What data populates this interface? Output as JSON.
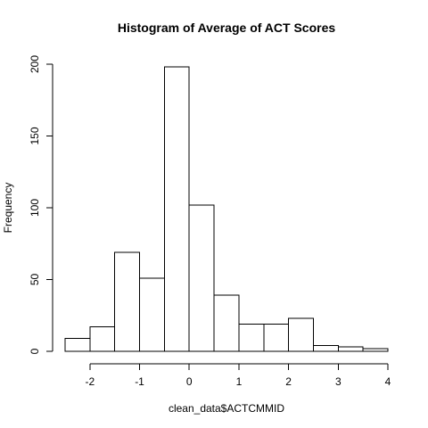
{
  "chart_data": {
    "type": "bar",
    "title": "Histogram of Average of ACT Scores",
    "xlabel": "clean_data$ACTCMMID",
    "ylabel": "Frequency",
    "bin_width": 0.5,
    "bins": [
      {
        "start": -2.5,
        "end": -2.0,
        "count": 9
      },
      {
        "start": -2.0,
        "end": -1.5,
        "count": 17
      },
      {
        "start": -1.5,
        "end": -1.0,
        "count": 69
      },
      {
        "start": -1.0,
        "end": -0.5,
        "count": 51
      },
      {
        "start": -0.5,
        "end": 0.0,
        "count": 198
      },
      {
        "start": 0.0,
        "end": 0.5,
        "count": 102
      },
      {
        "start": 0.5,
        "end": 1.0,
        "count": 39
      },
      {
        "start": 1.0,
        "end": 1.5,
        "count": 19
      },
      {
        "start": 1.5,
        "end": 2.0,
        "count": 19
      },
      {
        "start": 2.0,
        "end": 2.5,
        "count": 23
      },
      {
        "start": 2.5,
        "end": 3.0,
        "count": 4
      },
      {
        "start": 3.0,
        "end": 3.5,
        "count": 3
      },
      {
        "start": 3.5,
        "end": 4.0,
        "count": 2
      }
    ],
    "xlim": [
      -2.5,
      4.0
    ],
    "ylim": [
      0,
      200
    ],
    "x_ticks": [
      -2,
      -1,
      0,
      1,
      2,
      3,
      4
    ],
    "x_tick_labels": [
      "-2",
      "-1",
      "0",
      "1",
      "2",
      "3",
      "4"
    ],
    "y_ticks": [
      0,
      50,
      100,
      150,
      200
    ],
    "y_tick_labels": [
      "0",
      "50",
      "100",
      "150",
      "200"
    ],
    "grid": false,
    "bar_fill": "#ffffff",
    "bar_stroke": "#000000"
  }
}
